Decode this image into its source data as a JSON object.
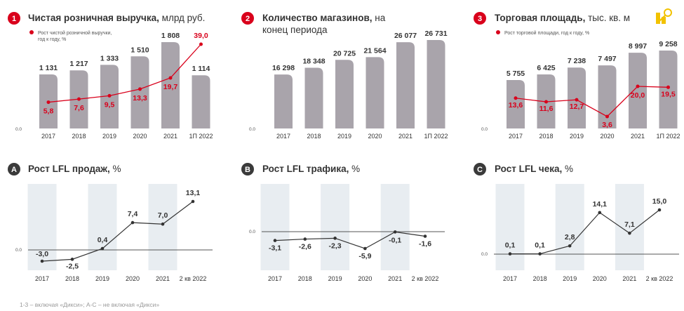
{
  "colors": {
    "bar": "#a9a4ab",
    "band": "#e8edf1",
    "red": "#d9001b",
    "badge_red": "#d9001b",
    "badge_dark": "#3a3a3a",
    "line_dark": "#333333",
    "axis": "#555555",
    "text": "#333333",
    "label_red": "#d9001b",
    "icon_yellow": "#f2c200"
  },
  "footnote": "1-3 – включая «Дикси»; А-С – не включая «Дикси»",
  "chart_data": [
    {
      "id": "revenue",
      "type": "bar",
      "badge": "1",
      "title": "Чистая розничная выручка,",
      "title_unit": " млрд руб.",
      "legend": "Рост чистой розничной выручки,\nгод к году, %",
      "zero_label": "0.0",
      "categories": [
        "2017",
        "2018",
        "2019",
        "2020",
        "2021",
        "1П 2022"
      ],
      "values": [
        1131,
        1217,
        1333,
        1510,
        1808,
        1114
      ],
      "value_labels": [
        "1 131",
        "1 217",
        "1 333",
        "1 510",
        "1 808",
        "1 114"
      ],
      "ylim": [
        0,
        1808
      ],
      "line": {
        "name": "Рост чистой розничной выручки, год к году, %",
        "values": [
          5.8,
          7.6,
          9.5,
          13.3,
          19.7,
          39.0
        ],
        "labels": [
          "5,8",
          "7,6",
          "9,5",
          "13,3",
          "19,7",
          "39,0"
        ],
        "ylim": [
          0,
          39
        ]
      }
    },
    {
      "id": "stores",
      "type": "bar",
      "badge": "2",
      "title": "Количество магазинов,",
      "title_unit": " на",
      "title_line2": "конец периода",
      "zero_label": "0.0",
      "categories": [
        "2017",
        "2018",
        "2019",
        "2020",
        "2021",
        "1П 2022"
      ],
      "values": [
        16298,
        18348,
        20725,
        21564,
        26077,
        26731
      ],
      "value_labels": [
        "16 298",
        "18 348",
        "20 725",
        "21 564",
        "26 077",
        "26 731"
      ],
      "ylim": [
        0,
        26731
      ]
    },
    {
      "id": "area",
      "type": "bar",
      "badge": "3",
      "title": "Торговая площадь,",
      "title_unit": " тыс. кв. м",
      "legend": "Рост торговой площади, год к году, %",
      "zero_label": "0.0",
      "categories": [
        "2017",
        "2018",
        "2019",
        "2020",
        "2021",
        "1П 2022"
      ],
      "values": [
        5755,
        6425,
        7238,
        7497,
        8997,
        9258
      ],
      "value_labels": [
        "5 755",
        "6 425",
        "7 238",
        "7 497",
        "8 997",
        "9 258"
      ],
      "ylim": [
        0,
        9258
      ],
      "line": {
        "name": "Рост торговой площади, год к году, %",
        "values": [
          13.6,
          11.6,
          12.7,
          3.6,
          20.0,
          19.5
        ],
        "labels": [
          "13,6",
          "11,6",
          "12,7",
          "3,6",
          "20,0",
          "19,5"
        ],
        "ylim": [
          3.6,
          20.0
        ]
      }
    },
    {
      "id": "lfl-sales",
      "type": "line",
      "badge": "A",
      "title": "Рост LFL продаж,",
      "title_unit": " %",
      "zero_label": "0.0",
      "categories": [
        "2017",
        "2018",
        "2019",
        "2020",
        "2021",
        "2 кв 2022"
      ],
      "values": [
        -3.0,
        -2.5,
        0.4,
        7.4,
        7.0,
        13.1
      ],
      "labels": [
        "-3,0",
        "-2,5",
        "0,4",
        "7,4",
        "7,0",
        "13,1"
      ],
      "ylim": [
        -3.0,
        13.1
      ]
    },
    {
      "id": "lfl-traffic",
      "type": "line",
      "badge": "B",
      "title": "Рост LFL трафика,",
      "title_unit": " %",
      "zero_label": "0.0",
      "categories": [
        "2017",
        "2018",
        "2019",
        "2020",
        "2021",
        "2 кв 2022"
      ],
      "values": [
        -3.1,
        -2.6,
        -2.3,
        -5.9,
        -0.1,
        -1.6
      ],
      "labels": [
        "-3,1",
        "-2,6",
        "-2,3",
        "-5,9",
        "-0,1",
        "-1,6"
      ],
      "ylim": [
        -5.9,
        0
      ]
    },
    {
      "id": "lfl-ticket",
      "type": "line",
      "badge": "C",
      "title": "Рост LFL чека,",
      "title_unit": " %",
      "zero_label": "0.0",
      "categories": [
        "2017",
        "2018",
        "2019",
        "2020",
        "2021",
        "2 кв 2022"
      ],
      "values": [
        0.1,
        0.1,
        2.8,
        14.1,
        7.1,
        15.0
      ],
      "labels": [
        "0,1",
        "0,1",
        "2,8",
        "14,1",
        "7,1",
        "15,0"
      ],
      "ylim": [
        0,
        15.0
      ]
    }
  ]
}
